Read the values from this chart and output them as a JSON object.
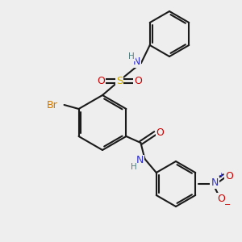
{
  "bg_color": "#eeeeee",
  "bond_color": "#1a1a1a",
  "atom_colors": {
    "N": "#3030cc",
    "O": "#cc0000",
    "S": "#ccaa00",
    "Br": "#cc7700",
    "H": "#508080",
    "C": "#1a1a1a"
  },
  "figsize": [
    3.0,
    3.0
  ],
  "dpi": 100
}
